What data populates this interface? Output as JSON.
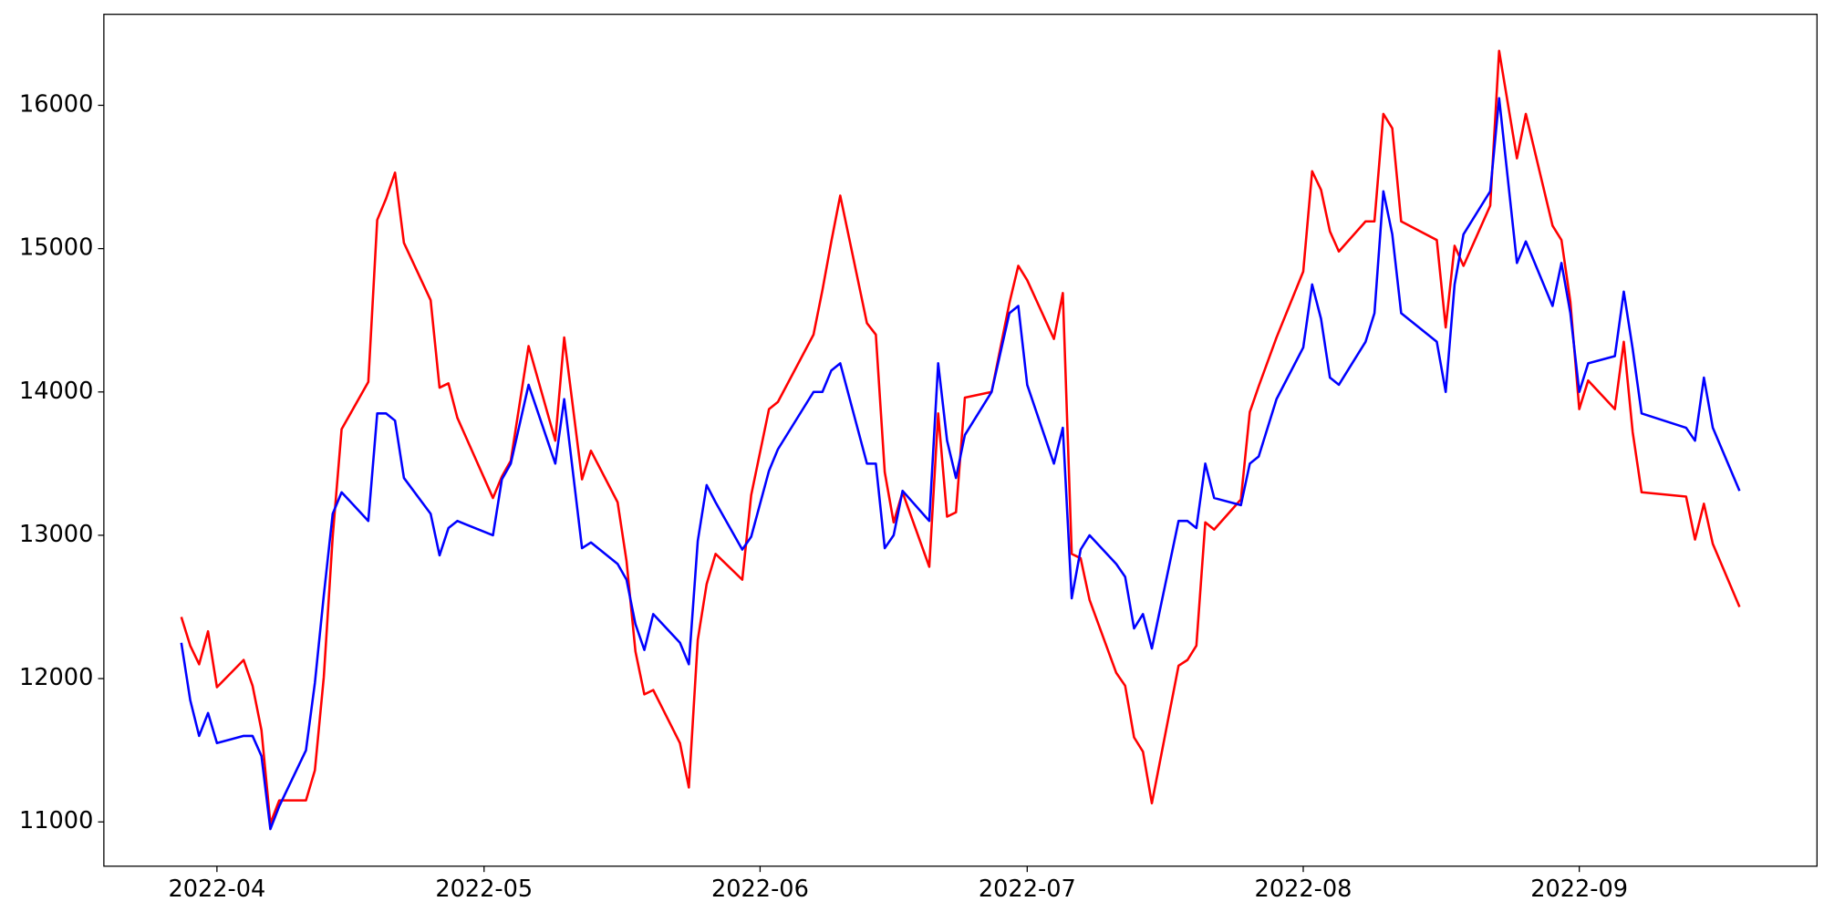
{
  "chart_data": {
    "type": "line",
    "x": [
      19079,
      19080,
      19081,
      19082,
      19083,
      19086,
      19087,
      19088,
      19089,
      19090,
      19093,
      19094,
      19095,
      19096,
      19097,
      19100,
      19101,
      19102,
      19103,
      19104,
      19107,
      19108,
      19109,
      19110,
      19114,
      19115,
      19116,
      19118,
      19121,
      19122,
      19124,
      19125,
      19128,
      19129,
      19130,
      19131,
      19132,
      19135,
      19136,
      19137,
      19138,
      19139,
      19142,
      19143,
      19145,
      19146,
      19150,
      19151,
      19152,
      19153,
      19156,
      19157,
      19158,
      19159,
      19160,
      19163,
      19164,
      19165,
      19166,
      19167,
      19170,
      19172,
      19173,
      19174,
      19177,
      19178,
      19179,
      19180,
      19181,
      19184,
      19185,
      19186,
      19187,
      19188,
      19191,
      19192,
      19193,
      19194,
      19195,
      19198,
      19199,
      19200,
      19202,
      19205,
      19206,
      19207,
      19208,
      19209,
      19212,
      19213,
      19214,
      19215,
      19216,
      19220,
      19221,
      19222,
      19223,
      19226,
      19227,
      19229,
      19230,
      19233,
      19234,
      19235,
      19236,
      19237,
      19240,
      19241,
      19242,
      19243,
      19248,
      19249,
      19250,
      19251,
      19254
    ],
    "series": [
      {
        "color": "#ff0000",
        "values": [
          12430,
          12230,
          12100,
          12330,
          11940,
          12130,
          11950,
          11640,
          10990,
          11150,
          11150,
          11360,
          12010,
          12990,
          13740,
          14070,
          15200,
          15350,
          15530,
          15040,
          14640,
          14030,
          14060,
          13820,
          13260,
          13410,
          13520,
          14320,
          13660,
          14380,
          13390,
          13590,
          13230,
          12820,
          12190,
          11890,
          11920,
          11550,
          11240,
          12270,
          12660,
          12870,
          12690,
          13280,
          13880,
          13930,
          14400,
          14710,
          15050,
          15370,
          14480,
          14400,
          13440,
          13090,
          13300,
          12780,
          13850,
          13130,
          13160,
          13960,
          14000,
          14620,
          14880,
          14780,
          14370,
          14690,
          12870,
          12840,
          12550,
          12040,
          11950,
          11590,
          11490,
          11130,
          12090,
          12130,
          12230,
          13090,
          13040,
          13250,
          13860,
          14040,
          14380,
          14840,
          15540,
          15410,
          15120,
          14980,
          15190,
          15190,
          15940,
          15840,
          15190,
          15060,
          14450,
          15020,
          14880,
          15300,
          16380,
          15630,
          15940,
          15160,
          15060,
          14630,
          13880,
          14080,
          13880,
          14350,
          13720,
          13300,
          13270,
          12970,
          13220,
          12940,
          12500
        ]
      },
      {
        "color": "#0000ff",
        "values": [
          12250,
          11850,
          11600,
          11760,
          11550,
          11600,
          11600,
          11460,
          10950,
          11110,
          11500,
          11970,
          12580,
          13150,
          13300,
          13100,
          13850,
          13850,
          13800,
          13400,
          13150,
          12860,
          13050,
          13100,
          13000,
          13390,
          13500,
          14050,
          13500,
          13950,
          12910,
          12950,
          12800,
          12690,
          12380,
          12200,
          12450,
          12250,
          12100,
          12960,
          13350,
          13230,
          12900,
          12990,
          13450,
          13600,
          14000,
          14000,
          14150,
          14200,
          13500,
          13500,
          12910,
          13000,
          13310,
          13100,
          14200,
          13660,
          13400,
          13700,
          14000,
          14550,
          14600,
          14050,
          13500,
          13750,
          12560,
          12900,
          13000,
          12800,
          12710,
          12350,
          12450,
          12210,
          13100,
          13100,
          13050,
          13500,
          13260,
          13210,
          13500,
          13550,
          13950,
          14310,
          14750,
          14510,
          14100,
          14050,
          14350,
          14550,
          15400,
          15100,
          14550,
          14350,
          14000,
          14750,
          15100,
          15400,
          16050,
          14900,
          15050,
          14600,
          14900,
          14550,
          14000,
          14200,
          14250,
          14700,
          14300,
          13850,
          13750,
          13660,
          14100,
          13750,
          13310
        ]
      }
    ],
    "xlim": [
      19070.3,
      19262.7
    ],
    "xticks": [
      {
        "value": 19083,
        "label": "2022-04"
      },
      {
        "value": 19113,
        "label": "2022-05"
      },
      {
        "value": 19144,
        "label": "2022-06"
      },
      {
        "value": 19174,
        "label": "2022-07"
      },
      {
        "value": 19205,
        "label": "2022-08"
      },
      {
        "value": 19236,
        "label": "2022-09"
      }
    ],
    "ylim": [
      10691,
      16635
    ],
    "yticks": [
      11000,
      12000,
      13000,
      14000,
      15000,
      16000
    ],
    "grid": false
  }
}
